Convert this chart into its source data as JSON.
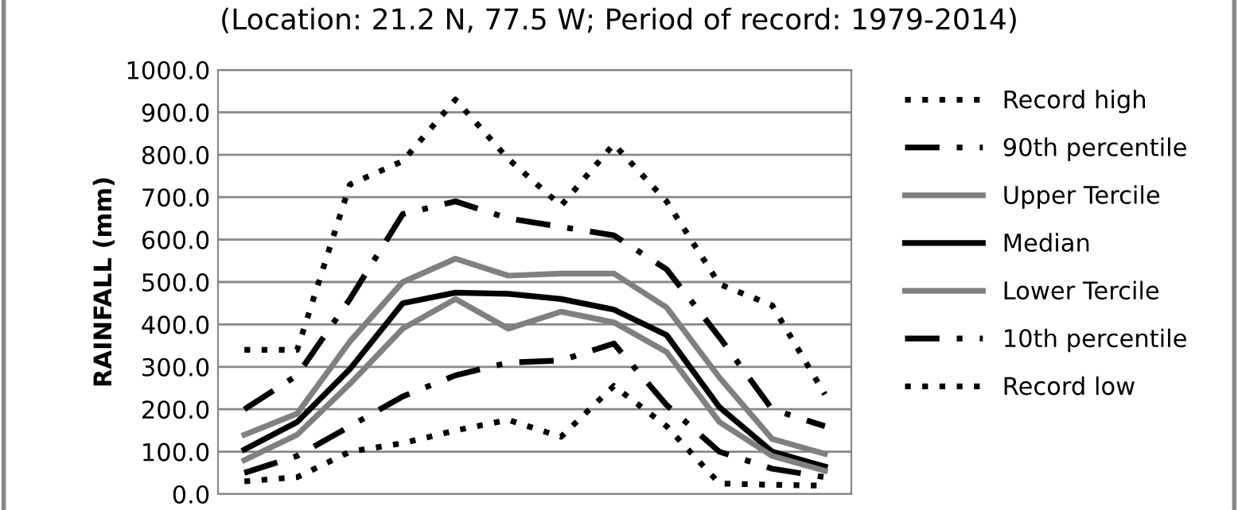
{
  "chart_data": {
    "type": "line",
    "title": "(Location: 21.2 N, 77.5 W; Period of record: 1979-2014)",
    "ylabel": "RAINFALL (mm)",
    "categories": [
      null,
      null,
      null,
      null,
      null,
      null,
      null,
      null,
      null,
      null,
      null,
      null
    ],
    "ylim": [
      0,
      1000
    ],
    "yticks": [
      {
        "value": 0,
        "label": "0.0"
      },
      {
        "value": 100,
        "label": "100.0"
      },
      {
        "value": 200,
        "label": "200.0"
      },
      {
        "value": 300,
        "label": "300.0"
      },
      {
        "value": 400,
        "label": "400.0"
      },
      {
        "value": 500,
        "label": "500.0"
      },
      {
        "value": 600,
        "label": "600.0"
      },
      {
        "value": 700,
        "label": "700.0"
      },
      {
        "value": 800,
        "label": "800.0"
      },
      {
        "value": 900,
        "label": "900.0"
      },
      {
        "value": 1000,
        "label": "1000.0"
      }
    ],
    "grid": "y",
    "legend": "right",
    "tick_labels": "y",
    "marker": "none",
    "series": [
      {
        "name": "Record high",
        "color": "#000000",
        "line_style": "dotted",
        "values": [
          340,
          340,
          730,
          785,
          930,
          790,
          680,
          825,
          690,
          495,
          445,
          235
        ]
      },
      {
        "name": "90th percentile",
        "color": "#000000",
        "line_style": "dashdot",
        "values": [
          200,
          280,
          460,
          660,
          690,
          650,
          630,
          610,
          530,
          370,
          200,
          160
        ]
      },
      {
        "name": "Upper Tercile",
        "color": "#808080",
        "line_style": "solid",
        "values": [
          140,
          190,
          360,
          500,
          555,
          515,
          520,
          520,
          440,
          275,
          130,
          95
        ]
      },
      {
        "name": "Median",
        "color": "#000000",
        "line_style": "solid",
        "values": [
          105,
          170,
          295,
          450,
          475,
          472,
          460,
          435,
          375,
          205,
          100,
          65
        ]
      },
      {
        "name": "Lower Tercile",
        "color": "#808080",
        "line_style": "solid",
        "values": [
          80,
          140,
          260,
          390,
          460,
          390,
          430,
          405,
          335,
          170,
          90,
          55
        ]
      },
      {
        "name": "10th percentile",
        "color": "#000000",
        "line_style": "dashdot",
        "values": [
          50,
          90,
          160,
          230,
          280,
          310,
          315,
          355,
          210,
          100,
          60,
          40
        ]
      },
      {
        "name": "Record low",
        "color": "#000000",
        "line_style": "dotted",
        "values": [
          30,
          40,
          100,
          120,
          150,
          175,
          135,
          255,
          160,
          25,
          22,
          20
        ]
      }
    ]
  }
}
